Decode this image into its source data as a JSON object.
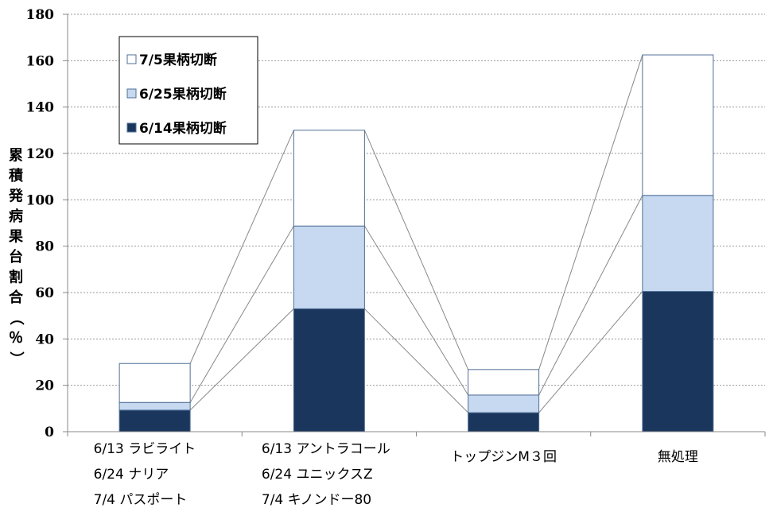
{
  "chart_data": {
    "type": "bar",
    "stacked": true,
    "categories": [
      [
        "6/13 ラビライト",
        "6/24 ナリア",
        "7/4 パスポート"
      ],
      [
        "6/13 アントラコール",
        "6/24 ユニックスZ",
        "7/4 キノンドー80"
      ],
      [
        "トップジンM３回"
      ],
      [
        "無処理"
      ]
    ],
    "series": [
      {
        "name": "6/14果柄切断",
        "values": [
          9.3,
          53.0,
          8.2,
          60.5
        ],
        "color": "#1b365d"
      },
      {
        "name": "6/25果柄切断",
        "values": [
          3.3,
          35.7,
          7.6,
          41.4
        ],
        "color": "#c6d9f1"
      },
      {
        "name": "7/5果柄切断",
        "values": [
          16.8,
          41.3,
          11.0,
          60.6
        ],
        "color": "#ffffff"
      }
    ],
    "legend_order": [
      2,
      1,
      0
    ],
    "legend_position": "top-left",
    "ylabel": "累積発病果台割合（％）",
    "xlabel": "",
    "title": "",
    "ylim": [
      0,
      180
    ],
    "yticks": [
      0,
      20,
      40,
      60,
      80,
      100,
      120,
      140,
      160,
      180
    ],
    "grid": true,
    "series_lines": true
  }
}
